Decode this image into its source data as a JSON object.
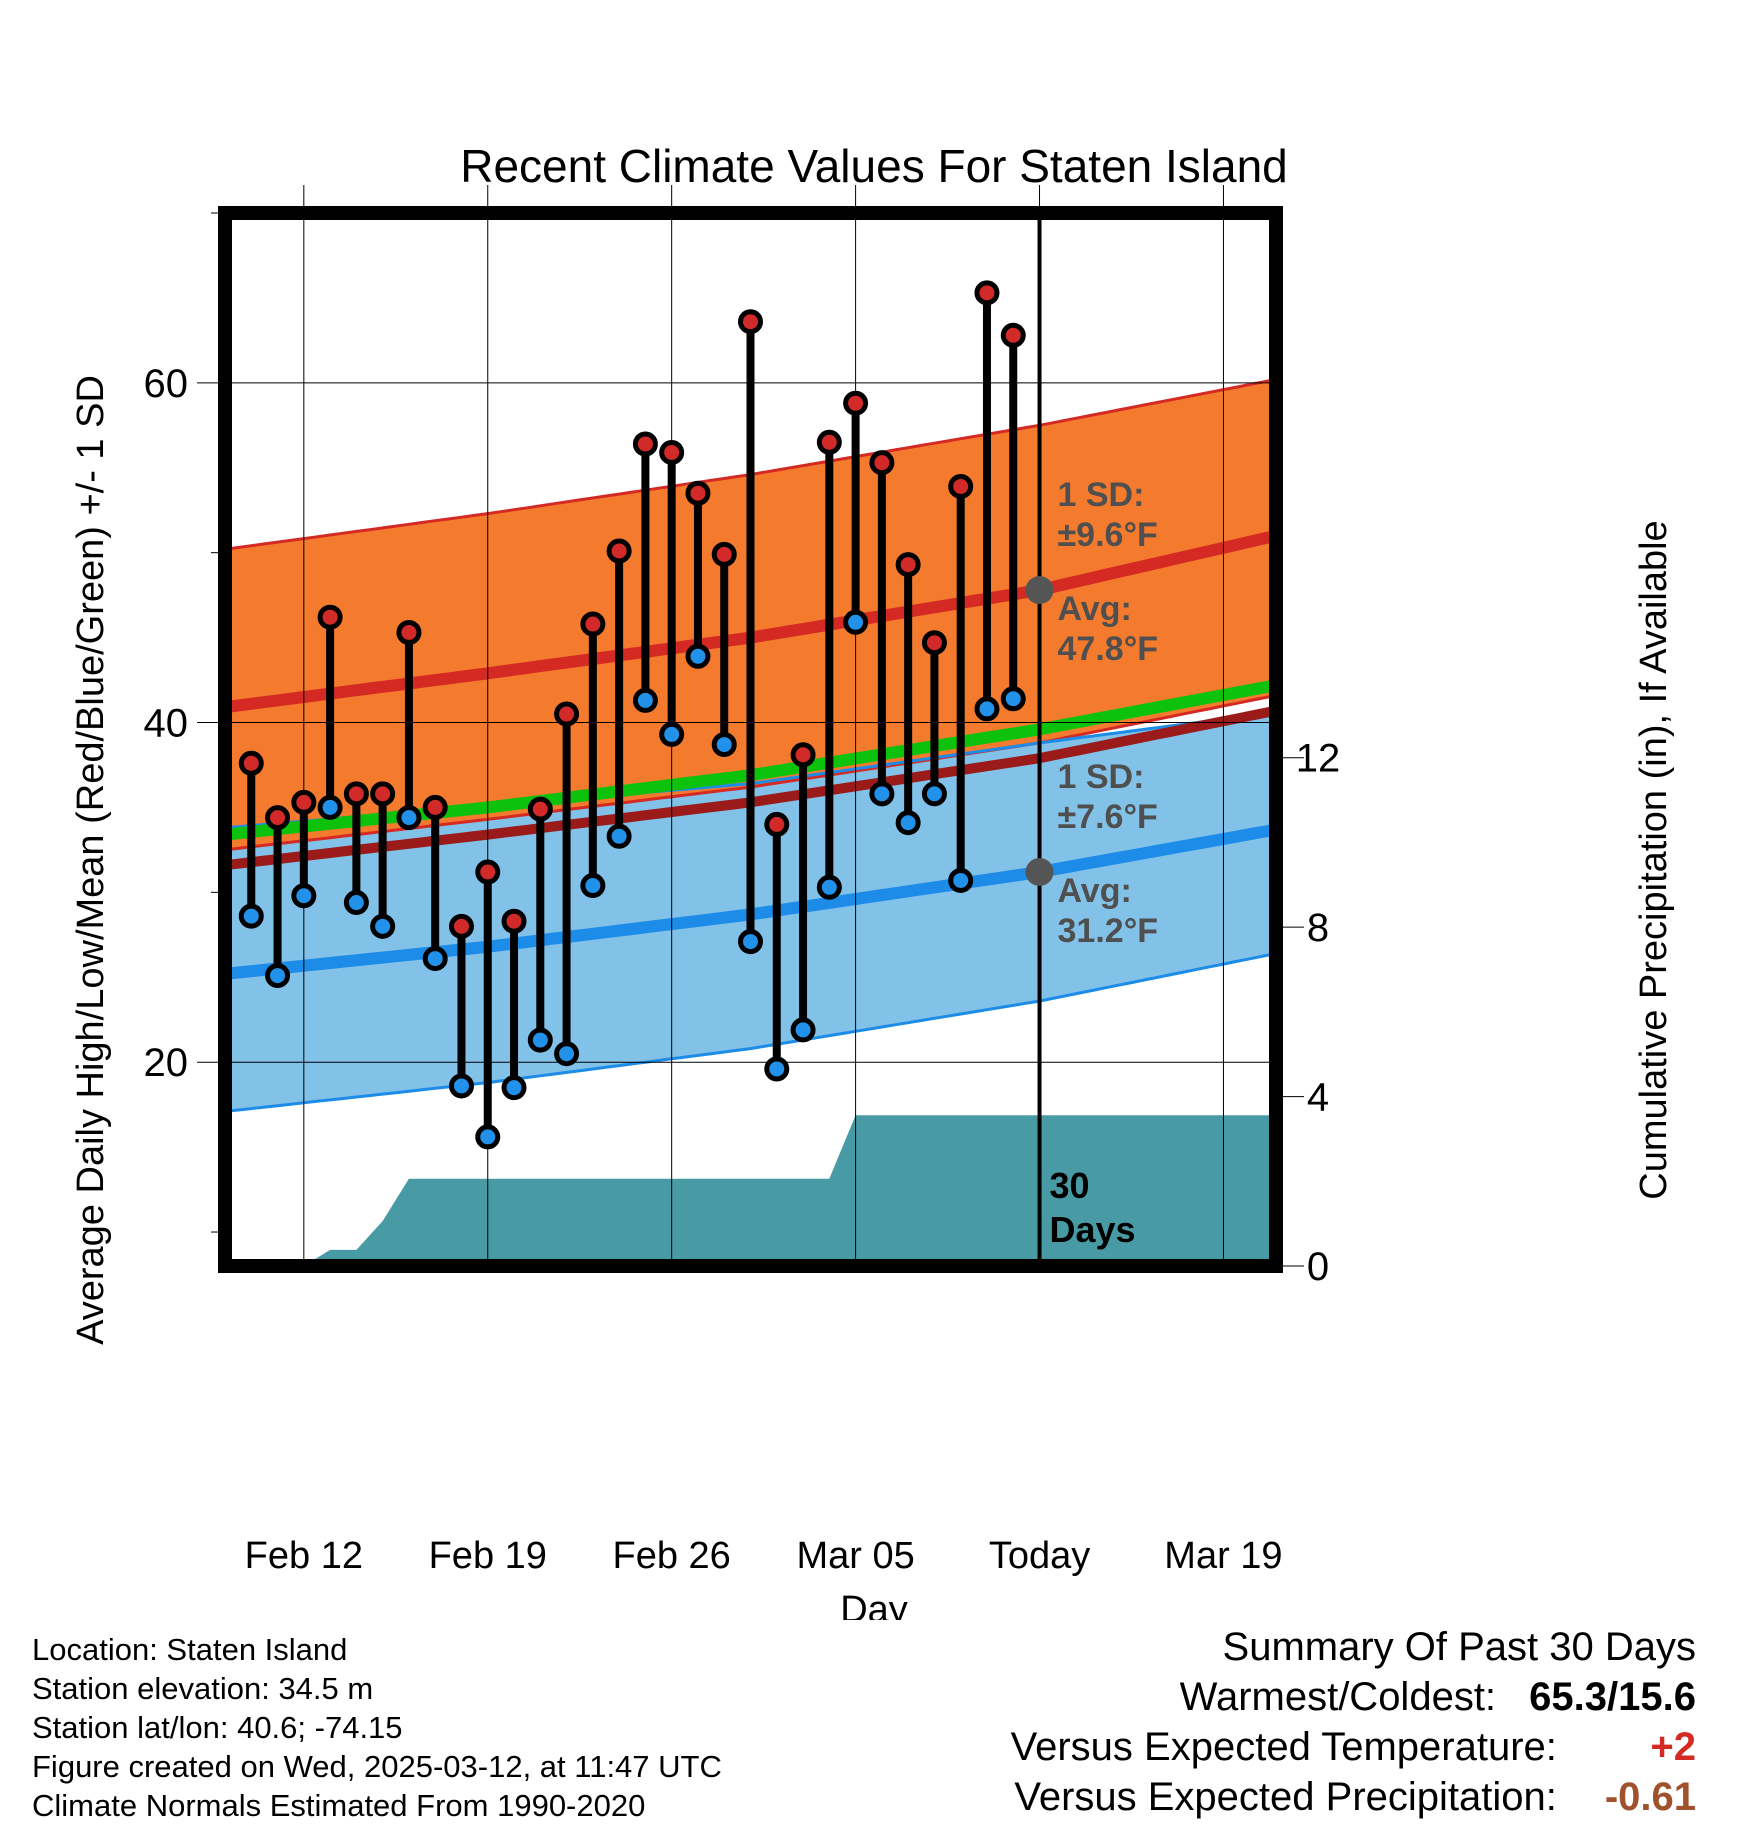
{
  "chart_data": {
    "type": "range-dot",
    "title": "Recent Climate Values For Staten Island",
    "xlabel": "Day",
    "ylabel_left": "Average Daily High/Low/Mean (Red/Blue/Green) +/- 1 SD",
    "ylabel_right": "Cumulative Precipitation (in), If Available",
    "x_tick_labels": [
      "Feb 12",
      "Feb 19",
      "Feb 26",
      "Mar 05",
      "Today",
      "Mar 19"
    ],
    "x_tick_dates": [
      "2025-02-12",
      "2025-02-19",
      "2025-02-26",
      "2025-03-05",
      "2025-03-12",
      "2025-03-19"
    ],
    "xlim": [
      "2025-02-09",
      "2025-03-21"
    ],
    "today": "2025-03-12",
    "left_y_ticks": [
      20,
      40,
      60
    ],
    "left_ylim": [
      8,
      70
    ],
    "right_y_ticks": [
      0,
      4,
      8,
      12
    ],
    "right_ylim": [
      0,
      24.86
    ],
    "observations": [
      {
        "date": "2025-02-10",
        "high": 37.6,
        "low": 28.6
      },
      {
        "date": "2025-02-11",
        "high": 34.4,
        "low": 25.1
      },
      {
        "date": "2025-02-12",
        "high": 35.3,
        "low": 29.8
      },
      {
        "date": "2025-02-13",
        "high": 46.2,
        "low": 35.0
      },
      {
        "date": "2025-02-14",
        "high": 35.8,
        "low": 29.4
      },
      {
        "date": "2025-02-15",
        "high": 35.8,
        "low": 28.0
      },
      {
        "date": "2025-02-16",
        "high": 45.3,
        "low": 34.4
      },
      {
        "date": "2025-02-17",
        "high": 35.0,
        "low": 26.1
      },
      {
        "date": "2025-02-18",
        "high": 28.0,
        "low": 18.6
      },
      {
        "date": "2025-02-19",
        "high": 31.2,
        "low": 15.6
      },
      {
        "date": "2025-02-20",
        "high": 28.3,
        "low": 18.5
      },
      {
        "date": "2025-02-21",
        "high": 34.9,
        "low": 21.3
      },
      {
        "date": "2025-02-22",
        "high": 40.5,
        "low": 20.5
      },
      {
        "date": "2025-02-23",
        "high": 45.8,
        "low": 30.4
      },
      {
        "date": "2025-02-24",
        "high": 50.1,
        "low": 33.3
      },
      {
        "date": "2025-02-25",
        "high": 56.4,
        "low": 41.3
      },
      {
        "date": "2025-02-26",
        "high": 55.9,
        "low": 39.3
      },
      {
        "date": "2025-02-27",
        "high": 53.5,
        "low": 43.9
      },
      {
        "date": "2025-02-28",
        "high": 49.9,
        "low": 38.7
      },
      {
        "date": "2025-03-01",
        "high": 63.6,
        "low": 27.1
      },
      {
        "date": "2025-03-02",
        "high": 34.0,
        "low": 19.6
      },
      {
        "date": "2025-03-03",
        "high": 38.1,
        "low": 21.9
      },
      {
        "date": "2025-03-04",
        "high": 56.5,
        "low": 30.3
      },
      {
        "date": "2025-03-05",
        "high": 58.8,
        "low": 45.9
      },
      {
        "date": "2025-03-06",
        "high": 55.3,
        "low": 35.8
      },
      {
        "date": "2025-03-07",
        "high": 49.3,
        "low": 34.1
      },
      {
        "date": "2025-03-08",
        "high": 44.7,
        "low": 35.8
      },
      {
        "date": "2025-03-09",
        "high": 53.9,
        "low": 30.7
      },
      {
        "date": "2025-03-10",
        "high": 65.3,
        "low": 40.8
      },
      {
        "date": "2025-03-11",
        "high": 62.8,
        "low": 41.4
      }
    ],
    "normal_high": {
      "dates": [
        "2025-02-09",
        "2025-02-19",
        "2025-03-01",
        "2025-03-12",
        "2025-03-21"
      ],
      "avg": [
        40.9,
        42.9,
        45.0,
        47.8,
        51.0
      ],
      "upper": [
        50.2,
        52.3,
        54.6,
        57.5,
        60.2
      ],
      "lower": [
        32.5,
        34.3,
        36.2,
        38.8,
        41.6
      ]
    },
    "normal_low": {
      "dates": [
        "2025-02-09",
        "2025-02-19",
        "2025-03-01",
        "2025-03-12",
        "2025-03-21"
      ],
      "avg": [
        25.2,
        26.8,
        28.7,
        31.2,
        33.7
      ],
      "upper": [
        33.8,
        35.1,
        36.4,
        38.8,
        40.6
      ],
      "lower": [
        17.1,
        18.8,
        20.8,
        23.6,
        26.4
      ]
    },
    "normal_mean": {
      "dates": [
        "2025-02-09",
        "2025-02-19",
        "2025-03-01",
        "2025-03-12",
        "2025-03-21"
      ],
      "values": [
        33.4,
        35.0,
        36.9,
        39.6,
        42.2
      ]
    },
    "precipitation": {
      "dates": [
        "2025-02-09",
        "2025-02-12",
        "2025-02-13",
        "2025-02-14",
        "2025-02-15",
        "2025-02-16",
        "2025-03-04",
        "2025-03-05",
        "2025-03-21"
      ],
      "cumulative": [
        0,
        0,
        0.38,
        0.38,
        1.06,
        2.06,
        2.06,
        3.56,
        3.56
      ]
    },
    "colors": {
      "high_band": "#f47b2e",
      "high_line": "#d42a23",
      "low_band": "#82c1e8",
      "low_line": "#1c8ce8",
      "mean_line": "#0dc20d",
      "precip_fill": "#489ba4",
      "high_dot": "#d22a28",
      "low_dot": "#2191e9",
      "annotation_text": "#4f4f4f"
    },
    "annotations": {
      "high_sd": "1 SD:",
      "high_sd_value": "±9.6°F",
      "high_avg": "Avg:",
      "high_avg_value": "47.8°F",
      "low_sd": "1 SD:",
      "low_sd_value": "±7.6°F",
      "low_avg": "Avg:",
      "low_avg_value": "31.2°F",
      "window_number": "30",
      "window_label": "Days"
    }
  },
  "footer": {
    "location": "Location: Staten Island",
    "elevation": "Station elevation: 34.5 m",
    "latlon": "Station lat/lon: 40.6; -74.15",
    "created": "Figure created on Wed, 2025-03-12, at 11:47 UTC",
    "normals": "Climate Normals Estimated From 1990-2020"
  },
  "summary": {
    "title": "Summary Of Past 30 Days",
    "warmest_label": "Warmest/Coldest:",
    "warmest_value": "65.3/15.6",
    "temp_label": "Versus Expected Temperature:",
    "temp_value": "+2",
    "temp_color": "#d42a23",
    "precip_label": "Versus Expected Precipitation:",
    "precip_value": "-0.61",
    "precip_color": "#a0522d"
  }
}
